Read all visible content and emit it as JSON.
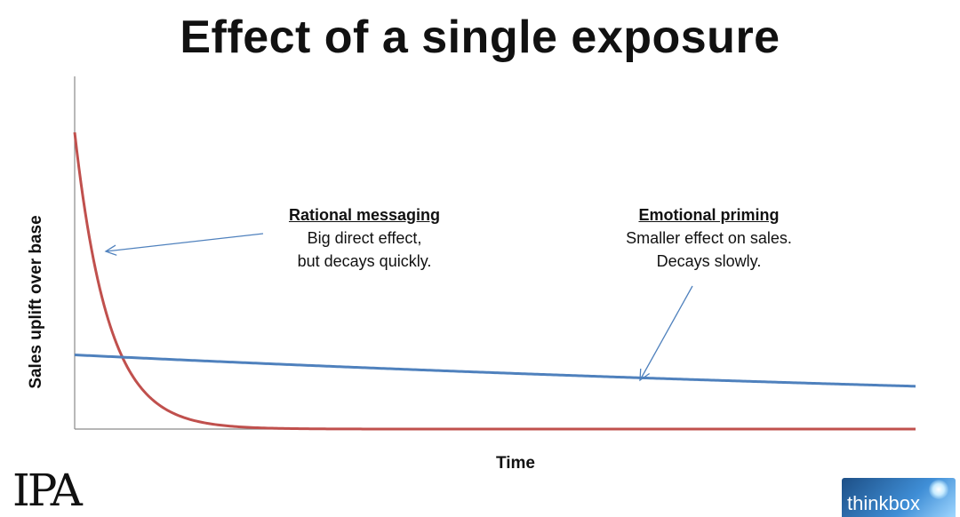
{
  "title": "Effect of a single exposure",
  "logos": {
    "left": "IPA",
    "right": "thinkbox"
  },
  "annotations": {
    "rational": {
      "heading": "Rational messaging",
      "line1": "Big direct effect,",
      "line2": "but decays quickly."
    },
    "emotional": {
      "heading": "Emotional priming",
      "line1": "Smaller effect on sales.",
      "line2": "Decays slowly."
    }
  },
  "chart_data": {
    "type": "line",
    "title": "Effect of a single exposure",
    "xlabel": "Time",
    "ylabel": "Sales uplift over base",
    "xlim": [
      0,
      100
    ],
    "ylim": [
      0,
      100
    ],
    "grid": false,
    "legend": "none",
    "ticks": "none",
    "series": [
      {
        "key": "rational",
        "color": "#c0504d",
        "start": 100,
        "end": 0,
        "rate": 0.25
      },
      {
        "key": "emotional",
        "color": "#4f81bd",
        "start": 25,
        "end": 0,
        "rate": 0.0055
      }
    ]
  }
}
